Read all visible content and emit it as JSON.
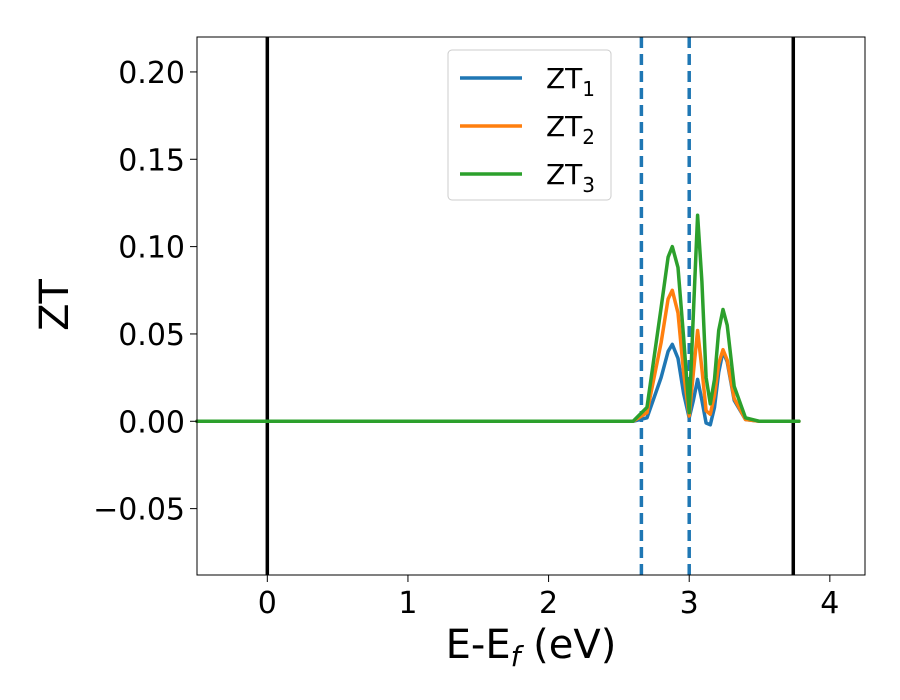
{
  "chart_data": {
    "type": "line",
    "xlabel": {
      "main": "E-E",
      "sub": "f",
      "unit": " (eV)"
    },
    "ylabel": "ZT",
    "xlim": [
      -0.5,
      4.25
    ],
    "ylim": [
      -0.088,
      0.22
    ],
    "xticks": [
      0,
      1,
      2,
      3,
      4
    ],
    "xtick_labels": [
      "0",
      "1",
      "2",
      "3",
      "4"
    ],
    "yticks": [
      -0.05,
      0.0,
      0.05,
      0.1,
      0.15,
      0.2
    ],
    "ytick_labels": [
      "−0.05",
      "0.00",
      "0.05",
      "0.10",
      "0.15",
      "0.20"
    ],
    "grid": false,
    "legend_position": "top-center",
    "vlines_solid": [
      0.0,
      3.74
    ],
    "vlines_dashed": [
      2.66,
      3.0
    ],
    "series": [
      {
        "name": "ZT",
        "name_sub": "1",
        "color": "#1f77b4",
        "x": [
          -0.5,
          2.6,
          2.7,
          2.8,
          2.85,
          2.88,
          2.92,
          2.96,
          3.0,
          3.03,
          3.06,
          3.09,
          3.12,
          3.15,
          3.18,
          3.21,
          3.24,
          3.27,
          3.32,
          3.4,
          3.5,
          3.6,
          3.78
        ],
        "y": [
          0.0,
          0.0,
          0.002,
          0.025,
          0.04,
          0.044,
          0.036,
          0.016,
          0.002,
          0.012,
          0.024,
          0.012,
          -0.001,
          -0.002,
          0.008,
          0.028,
          0.04,
          0.034,
          0.012,
          0.001,
          0.0,
          0.0,
          0.0
        ]
      },
      {
        "name": "ZT",
        "name_sub": "2",
        "color": "#ff7f0e",
        "x": [
          -0.5,
          2.6,
          2.7,
          2.8,
          2.85,
          2.88,
          2.92,
          2.96,
          3.0,
          3.03,
          3.06,
          3.09,
          3.12,
          3.15,
          3.18,
          3.21,
          3.24,
          3.27,
          3.32,
          3.4,
          3.5,
          3.6,
          3.78
        ],
        "y": [
          0.0,
          0.0,
          0.005,
          0.045,
          0.07,
          0.075,
          0.062,
          0.028,
          0.003,
          0.028,
          0.052,
          0.03,
          0.006,
          0.004,
          0.015,
          0.033,
          0.041,
          0.035,
          0.013,
          0.001,
          0.0,
          0.0,
          0.0
        ]
      },
      {
        "name": "ZT",
        "name_sub": "3",
        "color": "#2ca02c",
        "x": [
          -0.5,
          2.6,
          2.7,
          2.8,
          2.85,
          2.88,
          2.92,
          2.96,
          3.0,
          3.03,
          3.06,
          3.09,
          3.12,
          3.15,
          3.18,
          3.21,
          3.24,
          3.27,
          3.32,
          3.4,
          3.5,
          3.6,
          3.78
        ],
        "y": [
          0.0,
          0.0,
          0.008,
          0.065,
          0.094,
          0.1,
          0.088,
          0.048,
          0.005,
          0.062,
          0.118,
          0.08,
          0.025,
          0.01,
          0.024,
          0.052,
          0.064,
          0.055,
          0.02,
          0.002,
          0.0,
          0.0,
          0.0
        ]
      }
    ]
  }
}
